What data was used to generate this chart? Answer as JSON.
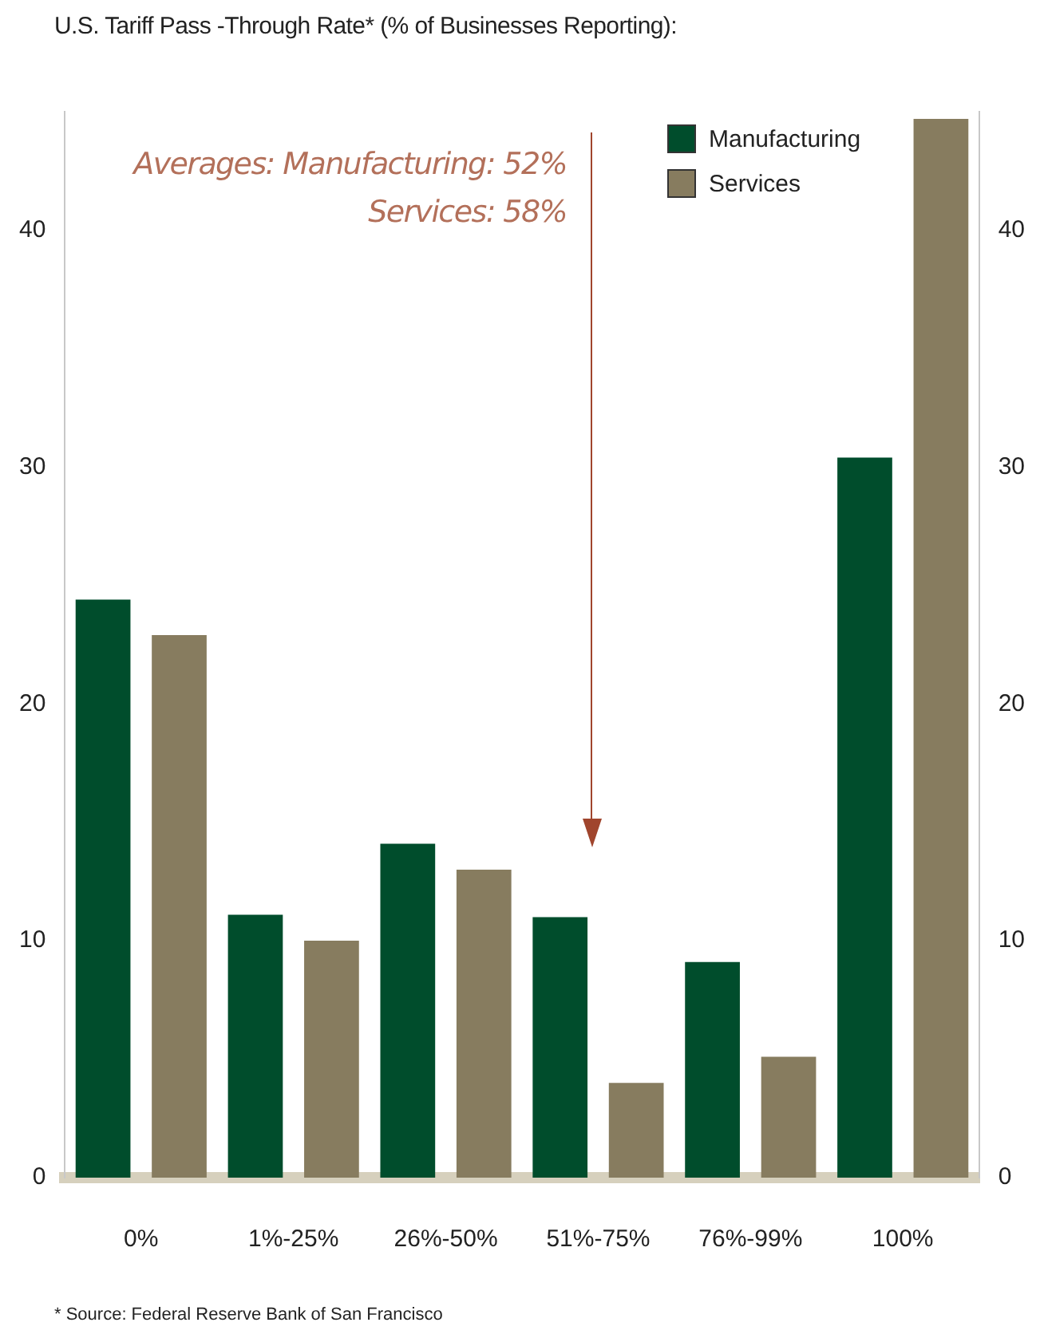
{
  "chart_data": {
    "type": "bar",
    "title": "U.S. Tariff Pass -Through Rate* (% of Businesses Reporting):",
    "categories": [
      "0%",
      "1%-25%",
      "26%-50%",
      "51%-75%",
      "76%-99%",
      "100%"
    ],
    "series": [
      {
        "name": "Manufacturing",
        "color": "#004d2c",
        "values": [
          24.4,
          11.1,
          14.1,
          11,
          9.1,
          30.4
        ]
      },
      {
        "name": "Services",
        "color": "#877c5f",
        "values": [
          22.9,
          10,
          13,
          4,
          5.1,
          44.7
        ]
      }
    ],
    "ylim": [
      0,
      45
    ],
    "yticks": [
      0,
      10,
      20,
      30,
      40
    ],
    "y2lim": [
      0,
      45
    ],
    "y2ticks": [
      0,
      10,
      20,
      30,
      40
    ],
    "grid": false,
    "legend": "top right",
    "annotations": [
      "Averages: Manufacturing: 52%",
      "Services: 58%",
      "* Source: Federal Reserve Bank of San Francisco"
    ]
  }
}
